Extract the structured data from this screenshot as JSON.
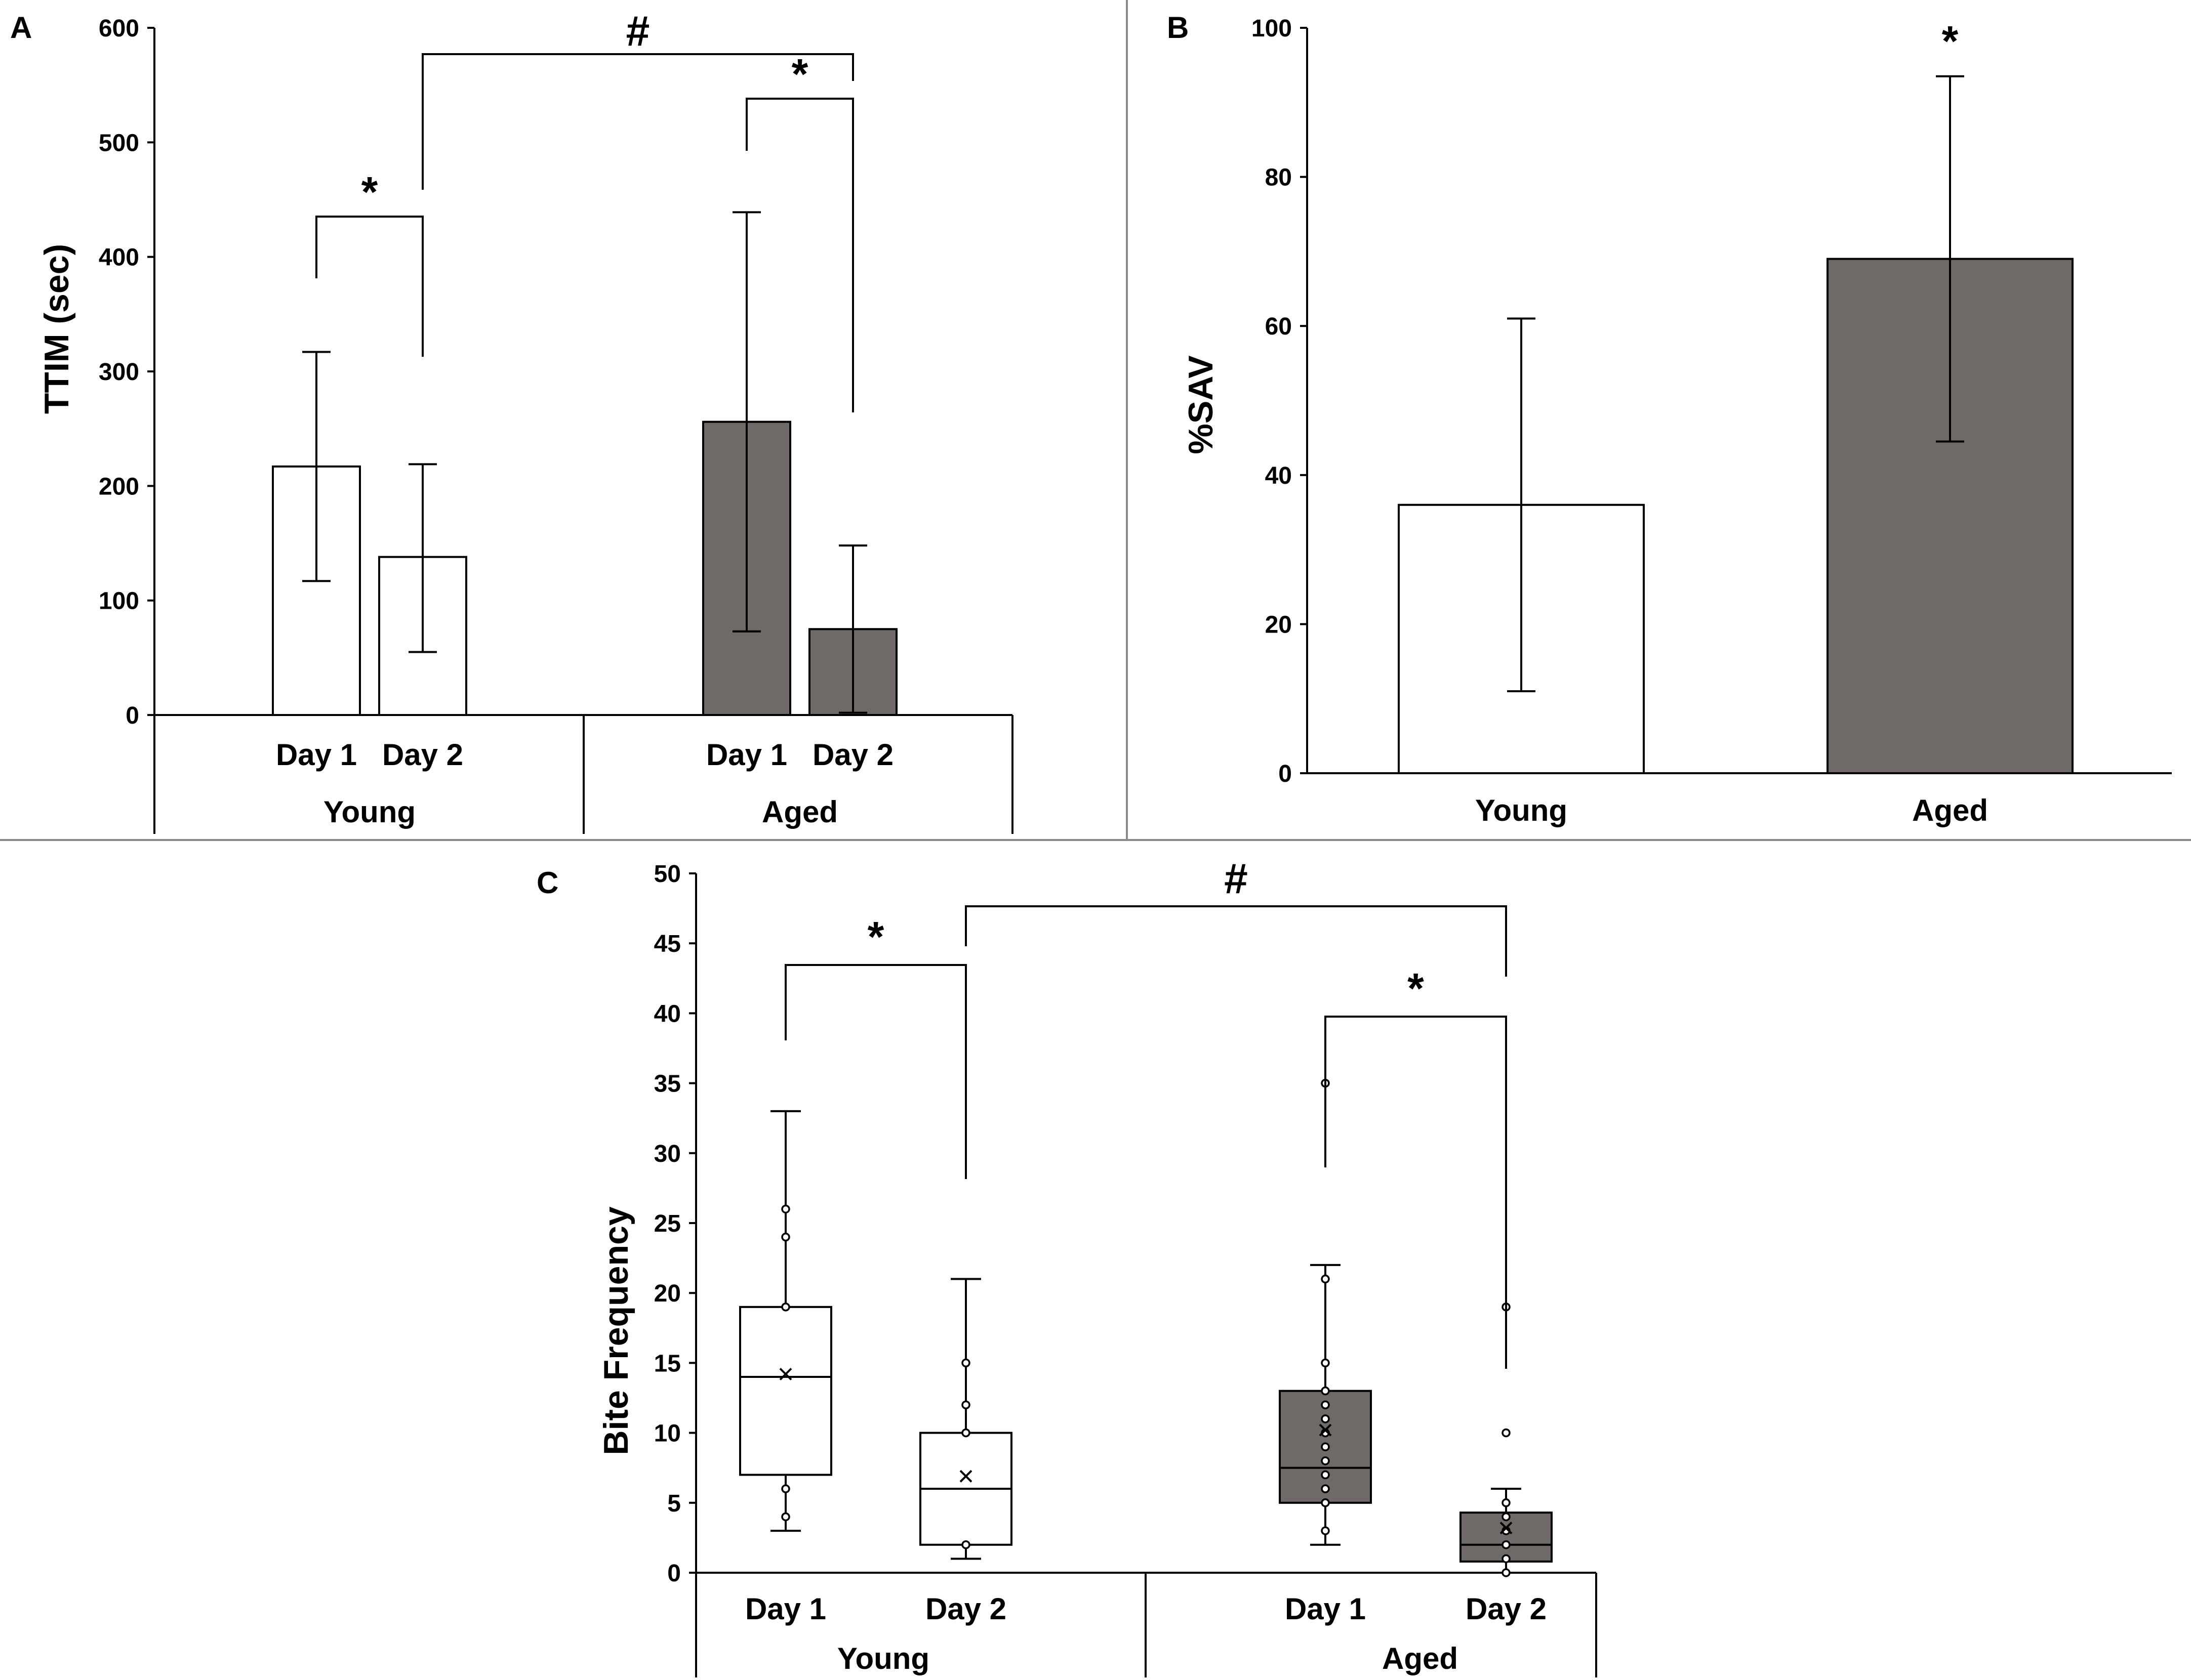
{
  "colors": {
    "white_fill": "#ffffff",
    "grey_fill": "#6f6a68",
    "stroke": "#000000",
    "border": "#8a8a8a"
  },
  "chart_data": [
    {
      "panel": "A",
      "type": "bar",
      "ylabel": "TTIM (sec)",
      "ylim": [
        0,
        600
      ],
      "yticks": [
        "0",
        "100",
        "200",
        "300",
        "400",
        "500",
        "600"
      ],
      "groups": [
        {
          "name": "Young",
          "fill": "white",
          "bars": [
            {
              "label": "Day 1",
              "value": 217,
              "err_low": 117,
              "err_high": 317
            },
            {
              "label": "Day 2",
              "value": 138,
              "err_low": 55,
              "err_high": 219
            }
          ]
        },
        {
          "name": "Aged",
          "fill": "grey",
          "bars": [
            {
              "label": "Day 1",
              "value": 256,
              "err_low": 73,
              "err_high": 439
            },
            {
              "label": "Day 2",
              "value": 75,
              "err_low": 2,
              "err_high": 148
            }
          ]
        }
      ],
      "annotations": [
        {
          "symbol": "*",
          "from": "Young Day 1",
          "to": "Young Day 2"
        },
        {
          "symbol": "*",
          "from": "Aged Day 1",
          "to": "Aged Day 2"
        },
        {
          "symbol": "#",
          "from": "Young Day 2",
          "to": "Aged Day 2"
        }
      ]
    },
    {
      "panel": "B",
      "type": "bar",
      "ylabel": "%SAV",
      "ylim": [
        0,
        100
      ],
      "yticks": [
        "0",
        "20",
        "40",
        "60",
        "80",
        "100"
      ],
      "bars": [
        {
          "label": "Young",
          "fill": "white",
          "value": 36,
          "err_low": 11,
          "err_high": 61
        },
        {
          "label": "Aged",
          "fill": "grey",
          "value": 69,
          "err_low": 44.5,
          "err_high": 93.5
        }
      ],
      "annotations": [
        {
          "symbol": "*",
          "over": "Aged"
        }
      ]
    },
    {
      "panel": "C",
      "type": "box",
      "ylabel": "Bite Frequency",
      "ylim": [
        0,
        50
      ],
      "yticks": [
        "0",
        "5",
        "10",
        "15",
        "20",
        "25",
        "30",
        "35",
        "40",
        "45",
        "50"
      ],
      "groups": [
        {
          "name": "Young",
          "fill": "white",
          "boxes": [
            {
              "label": "Day 1",
              "min": 3,
              "q1": 7,
              "median": 14,
              "q3": 19,
              "max": 33,
              "mean": 14.2,
              "points": [
                4,
                6,
                19,
                24,
                26
              ]
            },
            {
              "label": "Day 2",
              "min": 1,
              "q1": 2,
              "median": 6,
              "q3": 10,
              "max": 21,
              "mean": 6.9,
              "points": [
                2,
                10,
                12,
                15
              ]
            }
          ]
        },
        {
          "name": "Aged",
          "fill": "grey",
          "boxes": [
            {
              "label": "Day 1",
              "min": 2,
              "q1": 5,
              "median": 7.5,
              "q3": 13,
              "max": 22,
              "mean": 10.2,
              "points": [
                3,
                5,
                6,
                7,
                8,
                9,
                10,
                11,
                12,
                13,
                15,
                21,
                35
              ]
            },
            {
              "label": "Day 2",
              "min": 0,
              "q1": 0.8,
              "median": 2,
              "q3": 4.3,
              "max": 6,
              "mean": 3.2,
              "points": [
                0,
                1,
                2,
                3,
                4,
                5,
                10,
                19
              ]
            }
          ]
        }
      ],
      "annotations": [
        {
          "symbol": "*",
          "from": "Young Day 1",
          "to": "Young Day 2"
        },
        {
          "symbol": "*",
          "from": "Aged Day 1",
          "to": "Aged Day 2"
        },
        {
          "symbol": "#",
          "from": "Young Day 2",
          "to": "Aged Day 2"
        }
      ]
    }
  ]
}
